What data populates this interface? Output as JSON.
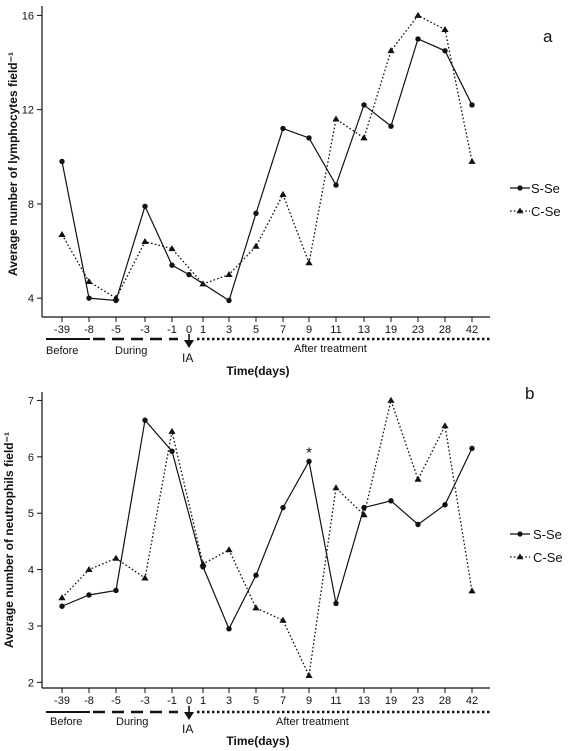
{
  "chart_data": [
    {
      "type": "line",
      "panel_label": "a",
      "categories": [
        "-39",
        "-8",
        "-5",
        "-3",
        "-1",
        "0",
        "1",
        "3",
        "5",
        "7",
        "9",
        "11",
        "13",
        "19",
        "23",
        "28",
        "42"
      ],
      "xlabel": "Time(days)",
      "ylabel": "Average number of lymphocytes field⁻¹",
      "ylim": [
        3.2,
        16.4
      ],
      "yticks": [
        4,
        8,
        12,
        16
      ],
      "series": [
        {
          "name": "S-Se",
          "style": "solid",
          "marker": "circle",
          "values": [
            9.8,
            4.0,
            3.9,
            7.9,
            5.4,
            5.0,
            null,
            3.9,
            7.6,
            11.2,
            10.8,
            8.8,
            12.2,
            11.3,
            15.0,
            14.5,
            12.2
          ]
        },
        {
          "name": "C-Se",
          "style": "dotted",
          "marker": "triangle",
          "values": [
            6.7,
            4.7,
            4.0,
            6.4,
            6.1,
            null,
            4.6,
            5.0,
            6.2,
            8.4,
            5.5,
            11.6,
            10.8,
            14.5,
            16.0,
            15.4,
            9.8
          ]
        }
      ],
      "phases": [
        "Before",
        "During",
        "After treatment"
      ],
      "ia_label": "IA",
      "legend_position": "right"
    },
    {
      "type": "line",
      "panel_label": "b",
      "categories": [
        "-39",
        "-8",
        "-5",
        "-3",
        "-1",
        "0",
        "1",
        "3",
        "5",
        "7",
        "9",
        "11",
        "13",
        "19",
        "23",
        "28",
        "42"
      ],
      "xlabel": "Time(days)",
      "ylabel": "Average number of neutrophils field⁻¹",
      "ylim": [
        1.9,
        7.15
      ],
      "yticks": [
        2,
        3,
        4,
        5,
        6,
        7
      ],
      "series": [
        {
          "name": "S-Se",
          "style": "solid",
          "marker": "circle",
          "values": [
            3.35,
            3.55,
            3.63,
            6.65,
            6.1,
            null,
            4.05,
            2.95,
            3.9,
            5.1,
            5.92,
            3.4,
            5.1,
            5.22,
            4.8,
            5.15,
            6.15
          ]
        },
        {
          "name": "C-Se",
          "style": "dotted",
          "marker": "triangle",
          "values": [
            3.5,
            4.0,
            4.2,
            3.85,
            6.45,
            null,
            4.1,
            4.35,
            3.32,
            3.1,
            2.12,
            5.45,
            4.97,
            7.0,
            5.6,
            6.55,
            3.62
          ]
        }
      ],
      "annotations": [
        {
          "text": "*",
          "category": "9"
        }
      ],
      "phases": [
        "Before",
        "During",
        "After treatment"
      ],
      "ia_label": "IA",
      "legend_position": "right"
    }
  ]
}
